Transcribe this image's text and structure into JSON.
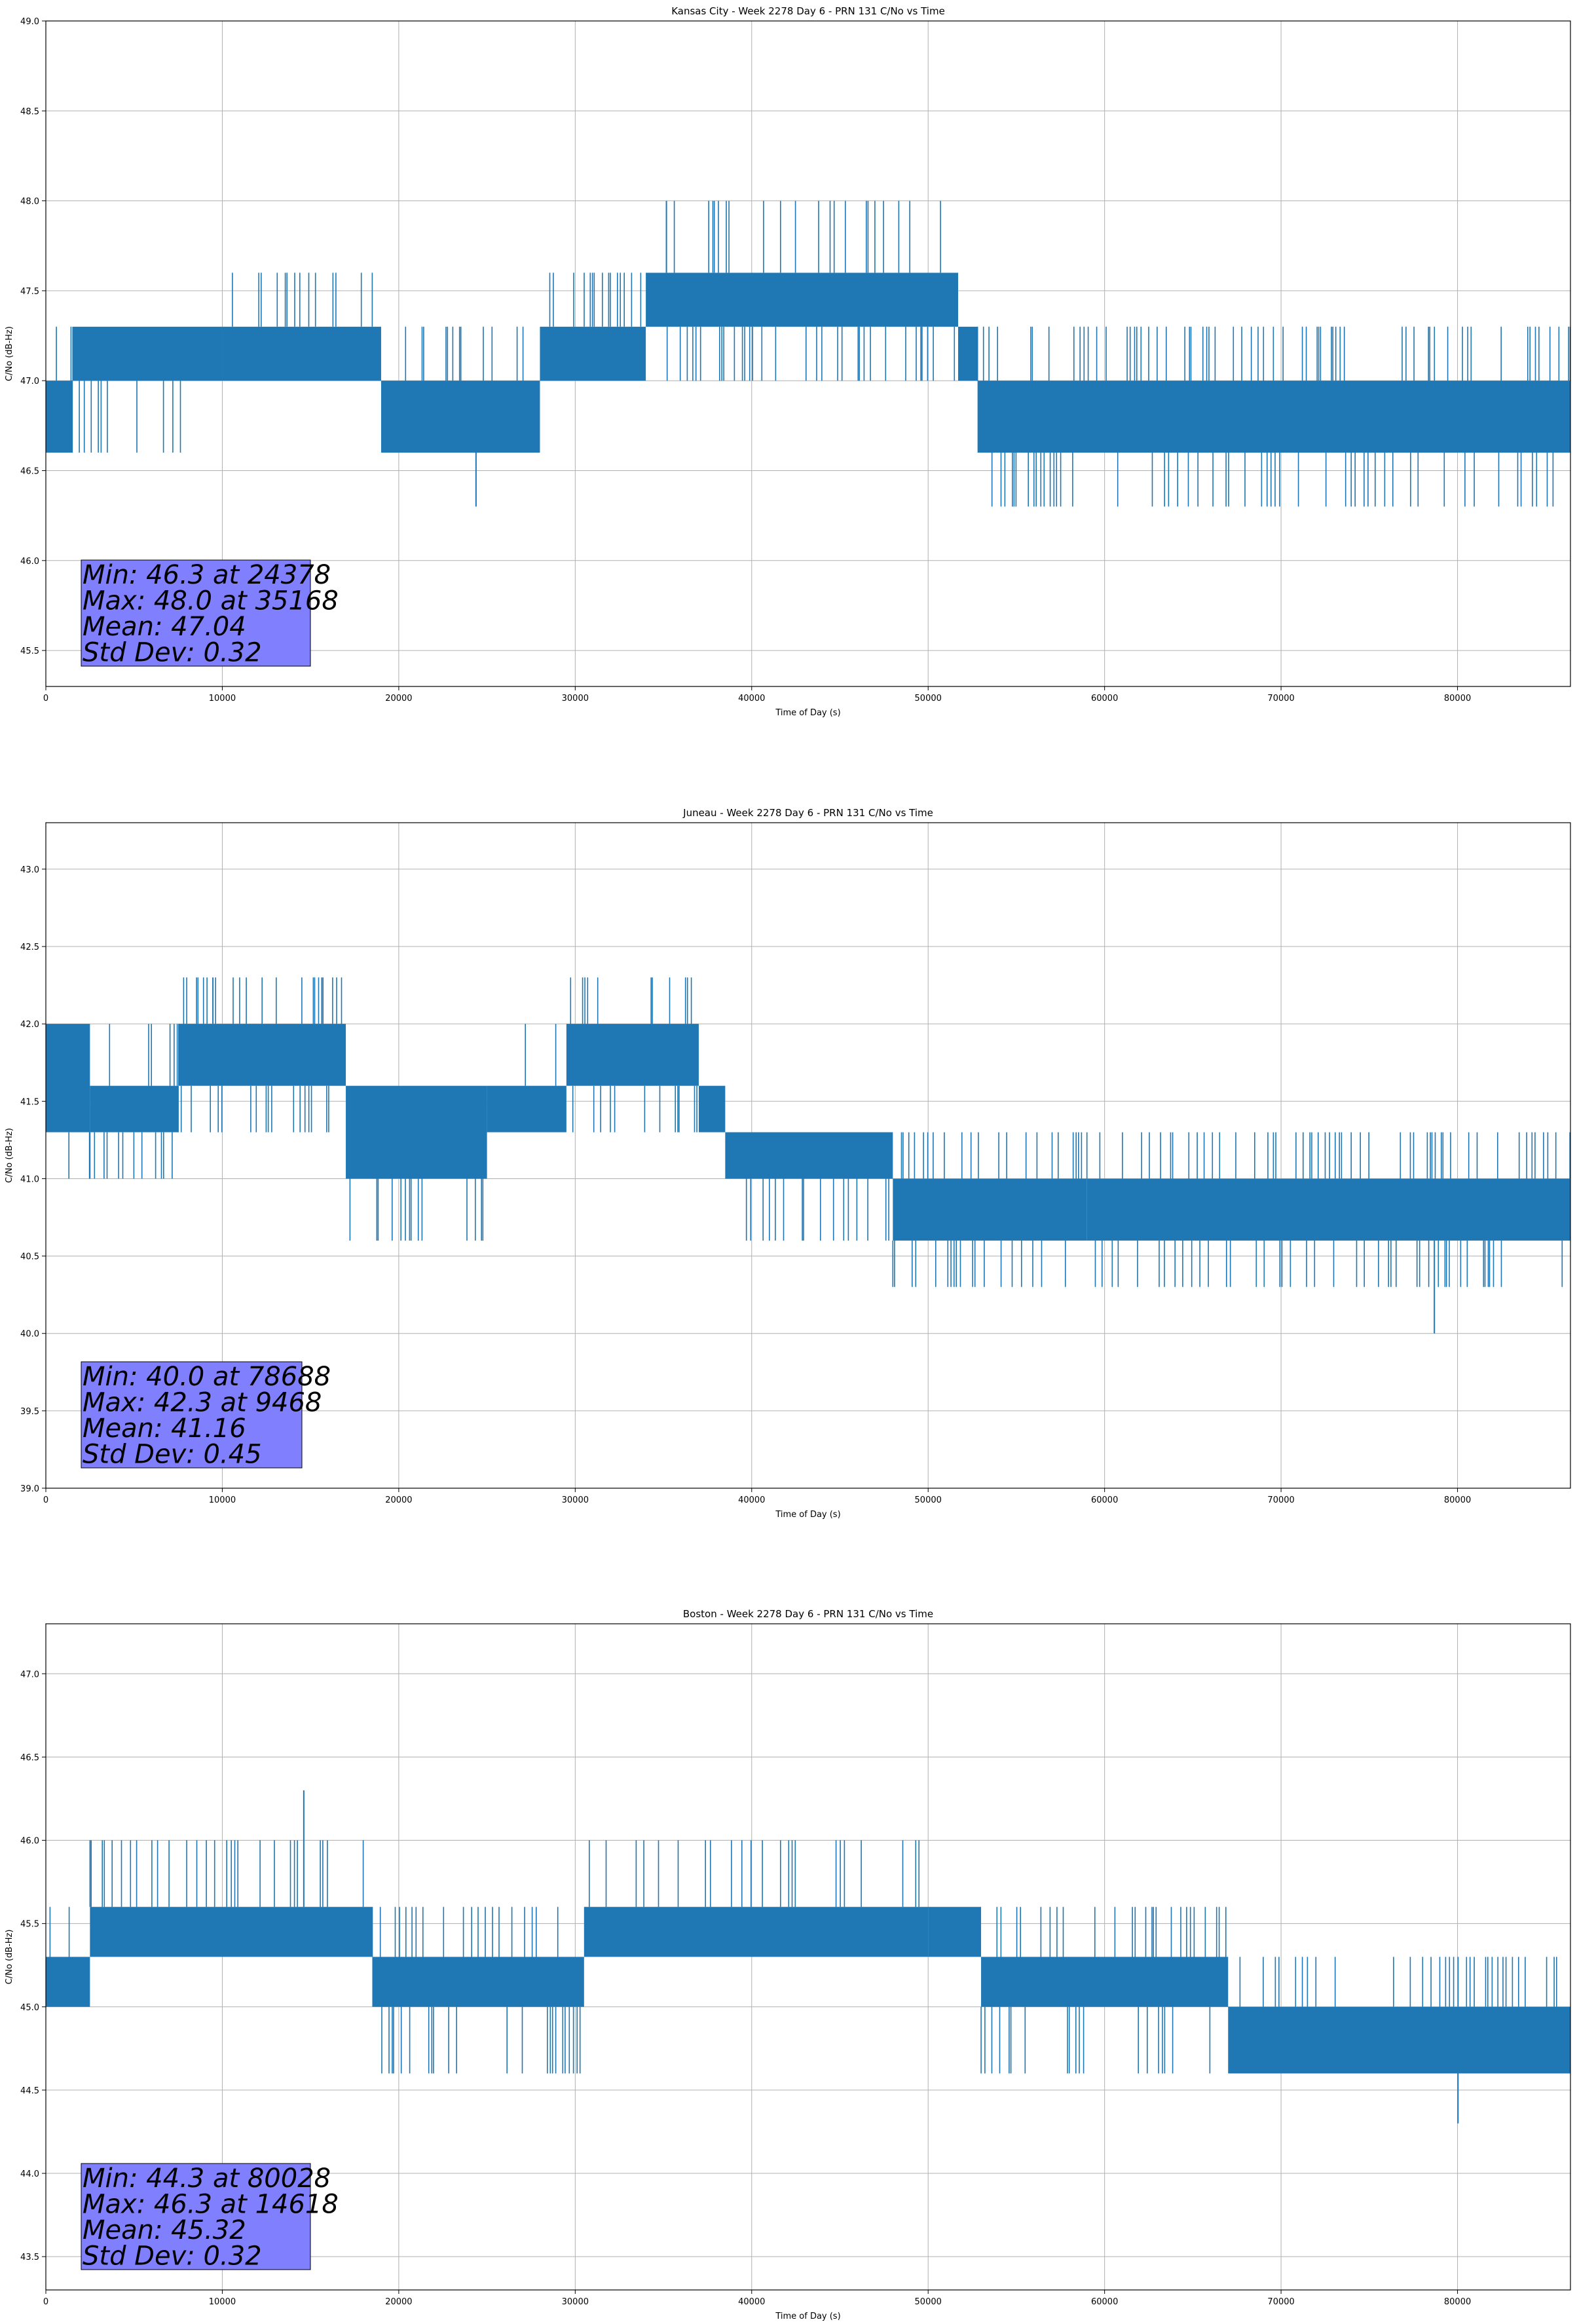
{
  "figure": {
    "color_trace": "#1f77b4",
    "color_stats_box": "#8080ff"
  },
  "chart_data": [
    {
      "type": "line",
      "title": "Kansas City - Week 2278 Day 6 - PRN 131 C/No vs Time",
      "xlabel": "Time of Day (s)",
      "ylabel": "C/No (dB-Hz)",
      "xlim": [
        0,
        86400
      ],
      "ylim": [
        45.3,
        49.0
      ],
      "xticks": [
        0,
        10000,
        20000,
        30000,
        40000,
        50000,
        60000,
        70000,
        80000
      ],
      "yticks": [
        "45.5",
        "46.0",
        "46.5",
        "47.0",
        "47.5",
        "48.0",
        "48.5",
        "49.0"
      ],
      "grid": true,
      "series": [
        {
          "bands": [
            {
              "x": [
                0,
                1500
              ],
              "base": [
                46.6,
                47.0
              ],
              "hi": 47.3
            },
            {
              "x": [
                1500,
                10000
              ],
              "base": [
                47.0,
                47.3
              ],
              "lo": 46.6
            },
            {
              "x": [
                10000,
                19000
              ],
              "base": [
                47.0,
                47.3
              ],
              "hi": 47.6
            },
            {
              "x": [
                19000,
                28000
              ],
              "base": [
                46.6,
                47.0
              ],
              "hi": 47.3
            },
            {
              "x": [
                28000,
                34000
              ],
              "base": [
                47.0,
                47.3
              ],
              "hi": 47.6
            },
            {
              "x": [
                34000,
                51700
              ],
              "base": [
                47.3,
                47.6
              ],
              "hi": 48.0,
              "lo": 47.0
            },
            {
              "x": [
                51700,
                52800
              ],
              "base": [
                47.0,
                47.3
              ]
            },
            {
              "x": [
                52800,
                86400
              ],
              "base": [
                46.6,
                47.0
              ],
              "lo": 46.3,
              "hi": 47.3
            }
          ],
          "extremes": [
            {
              "x": 24378,
              "y": 46.3
            },
            {
              "x": 35168,
              "y": 48.0
            }
          ]
        }
      ],
      "stats": [
        "Min: 46.3 at 24378",
        "Max: 48.0 at 35168",
        "Mean: 47.04",
        "Std Dev: 0.32"
      ]
    },
    {
      "type": "line",
      "title": "Juneau - Week 2278 Day 6 - PRN 131 C/No vs Time",
      "xlabel": "Time of Day (s)",
      "ylabel": "C/No (dB-Hz)",
      "xlim": [
        0,
        86400
      ],
      "ylim": [
        39.0,
        43.3
      ],
      "xticks": [
        0,
        10000,
        20000,
        30000,
        40000,
        50000,
        60000,
        70000,
        80000
      ],
      "yticks": [
        "39.0",
        "39.5",
        "40.0",
        "40.5",
        "41.0",
        "41.5",
        "42.0",
        "42.5",
        "43.0"
      ],
      "grid": true,
      "series": [
        {
          "bands": [
            {
              "x": [
                0,
                2500
              ],
              "base": [
                41.3,
                42.0
              ],
              "lo": 41.0
            },
            {
              "x": [
                2500,
                7500
              ],
              "base": [
                41.3,
                41.6
              ],
              "lo": 41.0,
              "hi": 42.0
            },
            {
              "x": [
                7500,
                17000
              ],
              "base": [
                41.6,
                42.0
              ],
              "hi": 42.3,
              "lo": 41.3
            },
            {
              "x": [
                17000,
                25000
              ],
              "base": [
                41.0,
                41.6
              ],
              "lo": 40.6
            },
            {
              "x": [
                25000,
                29500
              ],
              "base": [
                41.3,
                41.6
              ],
              "hi": 42.0
            },
            {
              "x": [
                29500,
                37000
              ],
              "base": [
                41.6,
                42.0
              ],
              "hi": 42.3,
              "lo": 41.3
            },
            {
              "x": [
                37000,
                38500
              ],
              "base": [
                41.3,
                41.6
              ]
            },
            {
              "x": [
                38500,
                48000
              ],
              "base": [
                41.0,
                41.3
              ],
              "lo": 40.6
            },
            {
              "x": [
                48000,
                59000
              ],
              "base": [
                40.6,
                41.0
              ],
              "lo": 40.3,
              "hi": 41.3
            },
            {
              "x": [
                59000,
                86400
              ],
              "base": [
                40.6,
                41.0
              ],
              "hi": 41.3,
              "lo": 40.3
            }
          ],
          "extremes": [
            {
              "x": 78688,
              "y": 40.0
            },
            {
              "x": 9468,
              "y": 42.3
            }
          ]
        }
      ],
      "stats": [
        "Min: 40.0 at 78688",
        "Max: 42.3 at 9468",
        "Mean: 41.16",
        "Std Dev: 0.45"
      ]
    },
    {
      "type": "line",
      "title": "Boston - Week 2278 Day 6 - PRN 131 C/No vs Time",
      "xlabel": "Time of Day (s)",
      "ylabel": "C/No (dB-Hz)",
      "xlim": [
        0,
        86400
      ],
      "ylim": [
        43.3,
        47.3
      ],
      "xticks": [
        0,
        10000,
        20000,
        30000,
        40000,
        50000,
        60000,
        70000,
        80000
      ],
      "yticks": [
        "43.5",
        "44.0",
        "44.5",
        "45.0",
        "45.5",
        "46.0",
        "46.5",
        "47.0"
      ],
      "grid": true,
      "series": [
        {
          "bands": [
            {
              "x": [
                0,
                2500
              ],
              "base": [
                45.0,
                45.3
              ],
              "hi": 45.6
            },
            {
              "x": [
                2500,
                9000
              ],
              "base": [
                45.3,
                45.6
              ],
              "hi": 46.0
            },
            {
              "x": [
                9000,
                18500
              ],
              "base": [
                45.3,
                45.6
              ],
              "hi": 46.0
            },
            {
              "x": [
                18500,
                30500
              ],
              "base": [
                45.0,
                45.3
              ],
              "hi": 45.6,
              "lo": 44.6
            },
            {
              "x": [
                30500,
                50000
              ],
              "base": [
                45.3,
                45.6
              ],
              "hi": 46.0
            },
            {
              "x": [
                50000,
                53000
              ],
              "base": [
                45.3,
                45.6
              ]
            },
            {
              "x": [
                53000,
                67000
              ],
              "base": [
                45.0,
                45.3
              ],
              "hi": 45.6,
              "lo": 44.6
            },
            {
              "x": [
                67000,
                86400
              ],
              "base": [
                44.6,
                45.0
              ],
              "hi": 45.3
            }
          ],
          "extremes": [
            {
              "x": 80028,
              "y": 44.3
            },
            {
              "x": 14618,
              "y": 46.3
            }
          ]
        }
      ],
      "stats": [
        "Min: 44.3 at 80028",
        "Max: 46.3 at 14618",
        "Mean: 45.32",
        "Std Dev: 0.32"
      ]
    }
  ]
}
